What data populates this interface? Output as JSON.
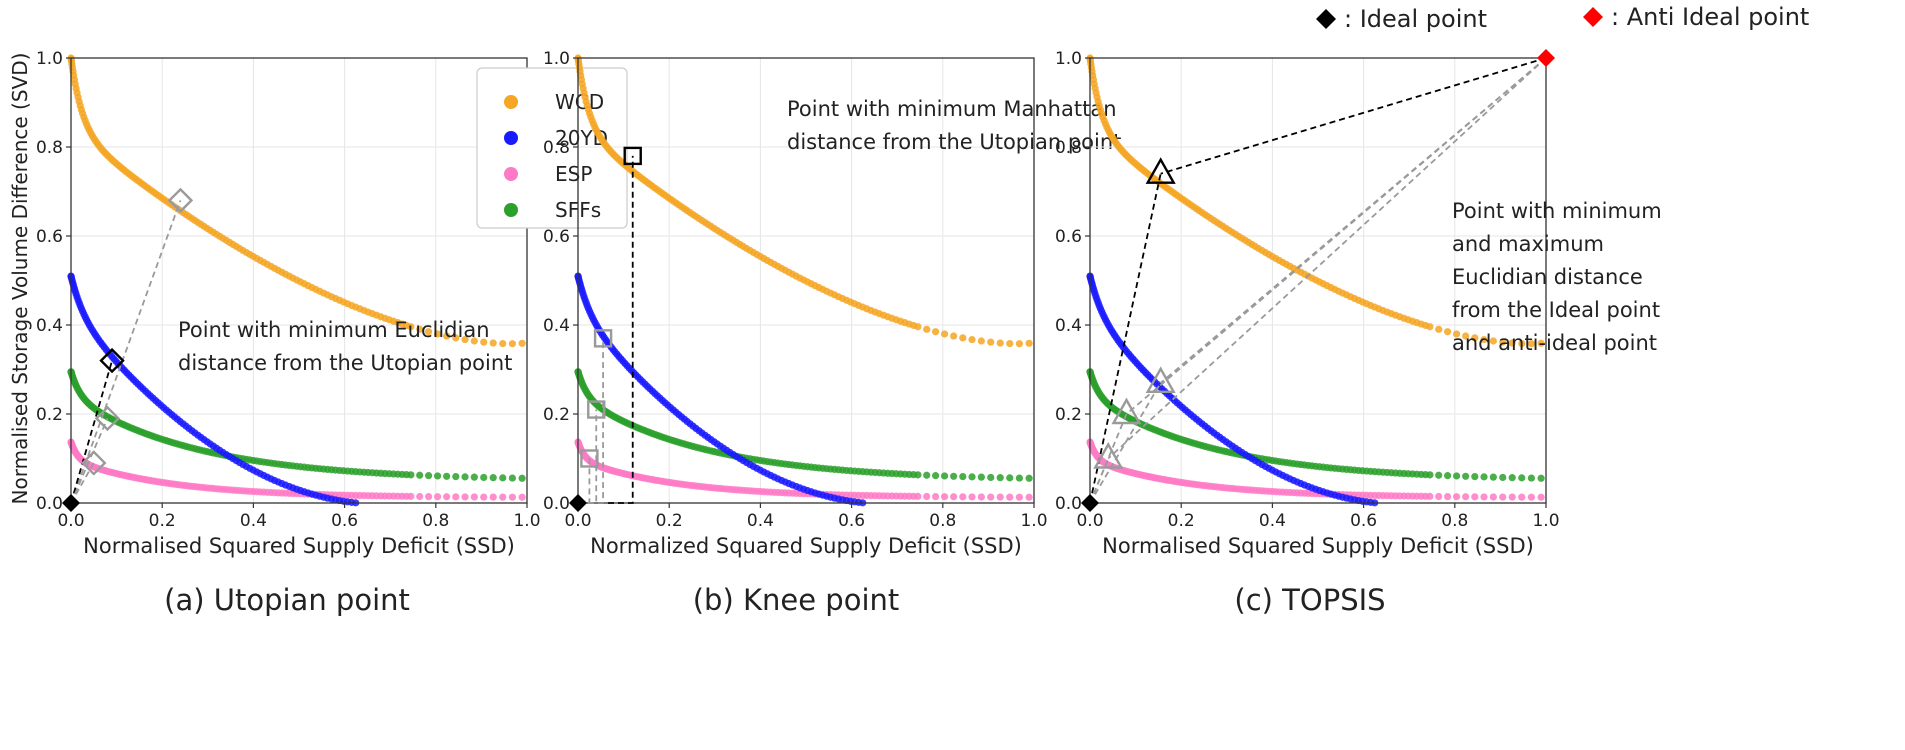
{
  "figure": {
    "top_legend": [
      {
        "marker": "black-diamond",
        "color": "#000000",
        "label": ": Ideal point"
      },
      {
        "marker": "red-diamond",
        "color": "#ff0000",
        "label": ": Anti Ideal point"
      }
    ],
    "series_legend": [
      {
        "name": "WCD",
        "color": "#f5a623"
      },
      {
        "name": "20YD",
        "color": "#1a1aff"
      },
      {
        "name": "ESP",
        "color": "#ff7ac6"
      },
      {
        "name": "SFFs",
        "color": "#2ca02c"
      }
    ],
    "colors": {
      "highlight_gray": "#9a9a9a",
      "black": "#000000",
      "red": "#ff0000",
      "grid": "#e6e6e6"
    }
  },
  "chart_data": [
    {
      "type": "scatter",
      "panel": "a",
      "caption": "(a) Utopian point",
      "xlabel": "Normalised Squared Supply Deficit (SSD)",
      "ylabel": "Normalised Storage Volume Difference (SVD)",
      "xlim": [
        0,
        1
      ],
      "ylim": [
        0,
        1
      ],
      "xticks": [
        "0.0",
        "0.2",
        "0.4",
        "0.6",
        "0.8",
        "1.0"
      ],
      "yticks": [
        "0.0",
        "0.2",
        "0.4",
        "0.6",
        "0.8",
        "1.0"
      ],
      "grid": true,
      "legend": "top-right",
      "annotation": [
        "Point with minimum Euclidian",
        "distance from the Utopian point"
      ],
      "highlights": [
        {
          "series": "WCD",
          "x": 0.24,
          "y": 0.68,
          "marker": "diamond",
          "style": "gray"
        },
        {
          "series": "20YD",
          "x": 0.09,
          "y": 0.32,
          "marker": "diamond",
          "style": "black"
        },
        {
          "series": "SFFs",
          "x": 0.08,
          "y": 0.19,
          "marker": "diamond",
          "style": "gray"
        },
        {
          "series": "ESP",
          "x": 0.05,
          "y": 0.09,
          "marker": "diamond",
          "style": "gray"
        }
      ],
      "reference_point": {
        "x": 0,
        "y": 0,
        "marker": "black-diamond"
      }
    },
    {
      "type": "scatter",
      "panel": "b",
      "caption": "(b) Knee point",
      "xlabel": "Normalized Squared Supply Deficit (SSD)",
      "ylabel": "",
      "xlim": [
        0,
        1
      ],
      "ylim": [
        0,
        1
      ],
      "xticks": [
        "0.0",
        "0.2",
        "0.4",
        "0.6",
        "0.8",
        "1.0"
      ],
      "yticks": [
        "0.0",
        "0.2",
        "0.4",
        "0.6",
        "0.8",
        "1.0"
      ],
      "grid": true,
      "annotation": [
        "Point with minimum Manhattan",
        "distance from the Utopian point"
      ],
      "highlights": [
        {
          "series": "WCD",
          "x": 0.12,
          "y": 0.78,
          "marker": "square",
          "style": "black"
        },
        {
          "series": "20YD",
          "x": 0.055,
          "y": 0.37,
          "marker": "square",
          "style": "gray"
        },
        {
          "series": "SFFs",
          "x": 0.04,
          "y": 0.21,
          "marker": "square",
          "style": "gray"
        },
        {
          "series": "ESP",
          "x": 0.025,
          "y": 0.1,
          "marker": "square",
          "style": "gray"
        }
      ],
      "reference_point": {
        "x": 0,
        "y": 0,
        "marker": "black-diamond"
      }
    },
    {
      "type": "scatter",
      "panel": "c",
      "caption": "(c) TOPSIS",
      "xlabel": "Normalised Squared Supply Deficit (SSD)",
      "ylabel": "",
      "xlim": [
        0,
        1
      ],
      "ylim": [
        0,
        1
      ],
      "xticks": [
        "0.0",
        "0.2",
        "0.4",
        "0.6",
        "0.8",
        "1.0"
      ],
      "yticks": [
        "0.0",
        "0.2",
        "0.4",
        "0.6",
        "0.8",
        "1.0"
      ],
      "grid": true,
      "annotation": [
        "Point with minimum",
        "and maximum",
        "Euclidian distance",
        "from the Ideal point",
        "and anti-ideal point"
      ],
      "highlights": [
        {
          "series": "WCD",
          "x": 0.155,
          "y": 0.74,
          "marker": "triangle",
          "style": "black"
        },
        {
          "series": "20YD",
          "x": 0.155,
          "y": 0.27,
          "marker": "triangle",
          "style": "gray"
        },
        {
          "series": "SFFs",
          "x": 0.08,
          "y": 0.2,
          "marker": "triangle",
          "style": "gray"
        },
        {
          "series": "ESP",
          "x": 0.04,
          "y": 0.1,
          "marker": "triangle",
          "style": "gray"
        }
      ],
      "reference_point": {
        "x": 0,
        "y": 0,
        "marker": "black-diamond"
      },
      "anti_ideal_point": {
        "x": 1,
        "y": 1,
        "marker": "red-diamond"
      }
    }
  ]
}
